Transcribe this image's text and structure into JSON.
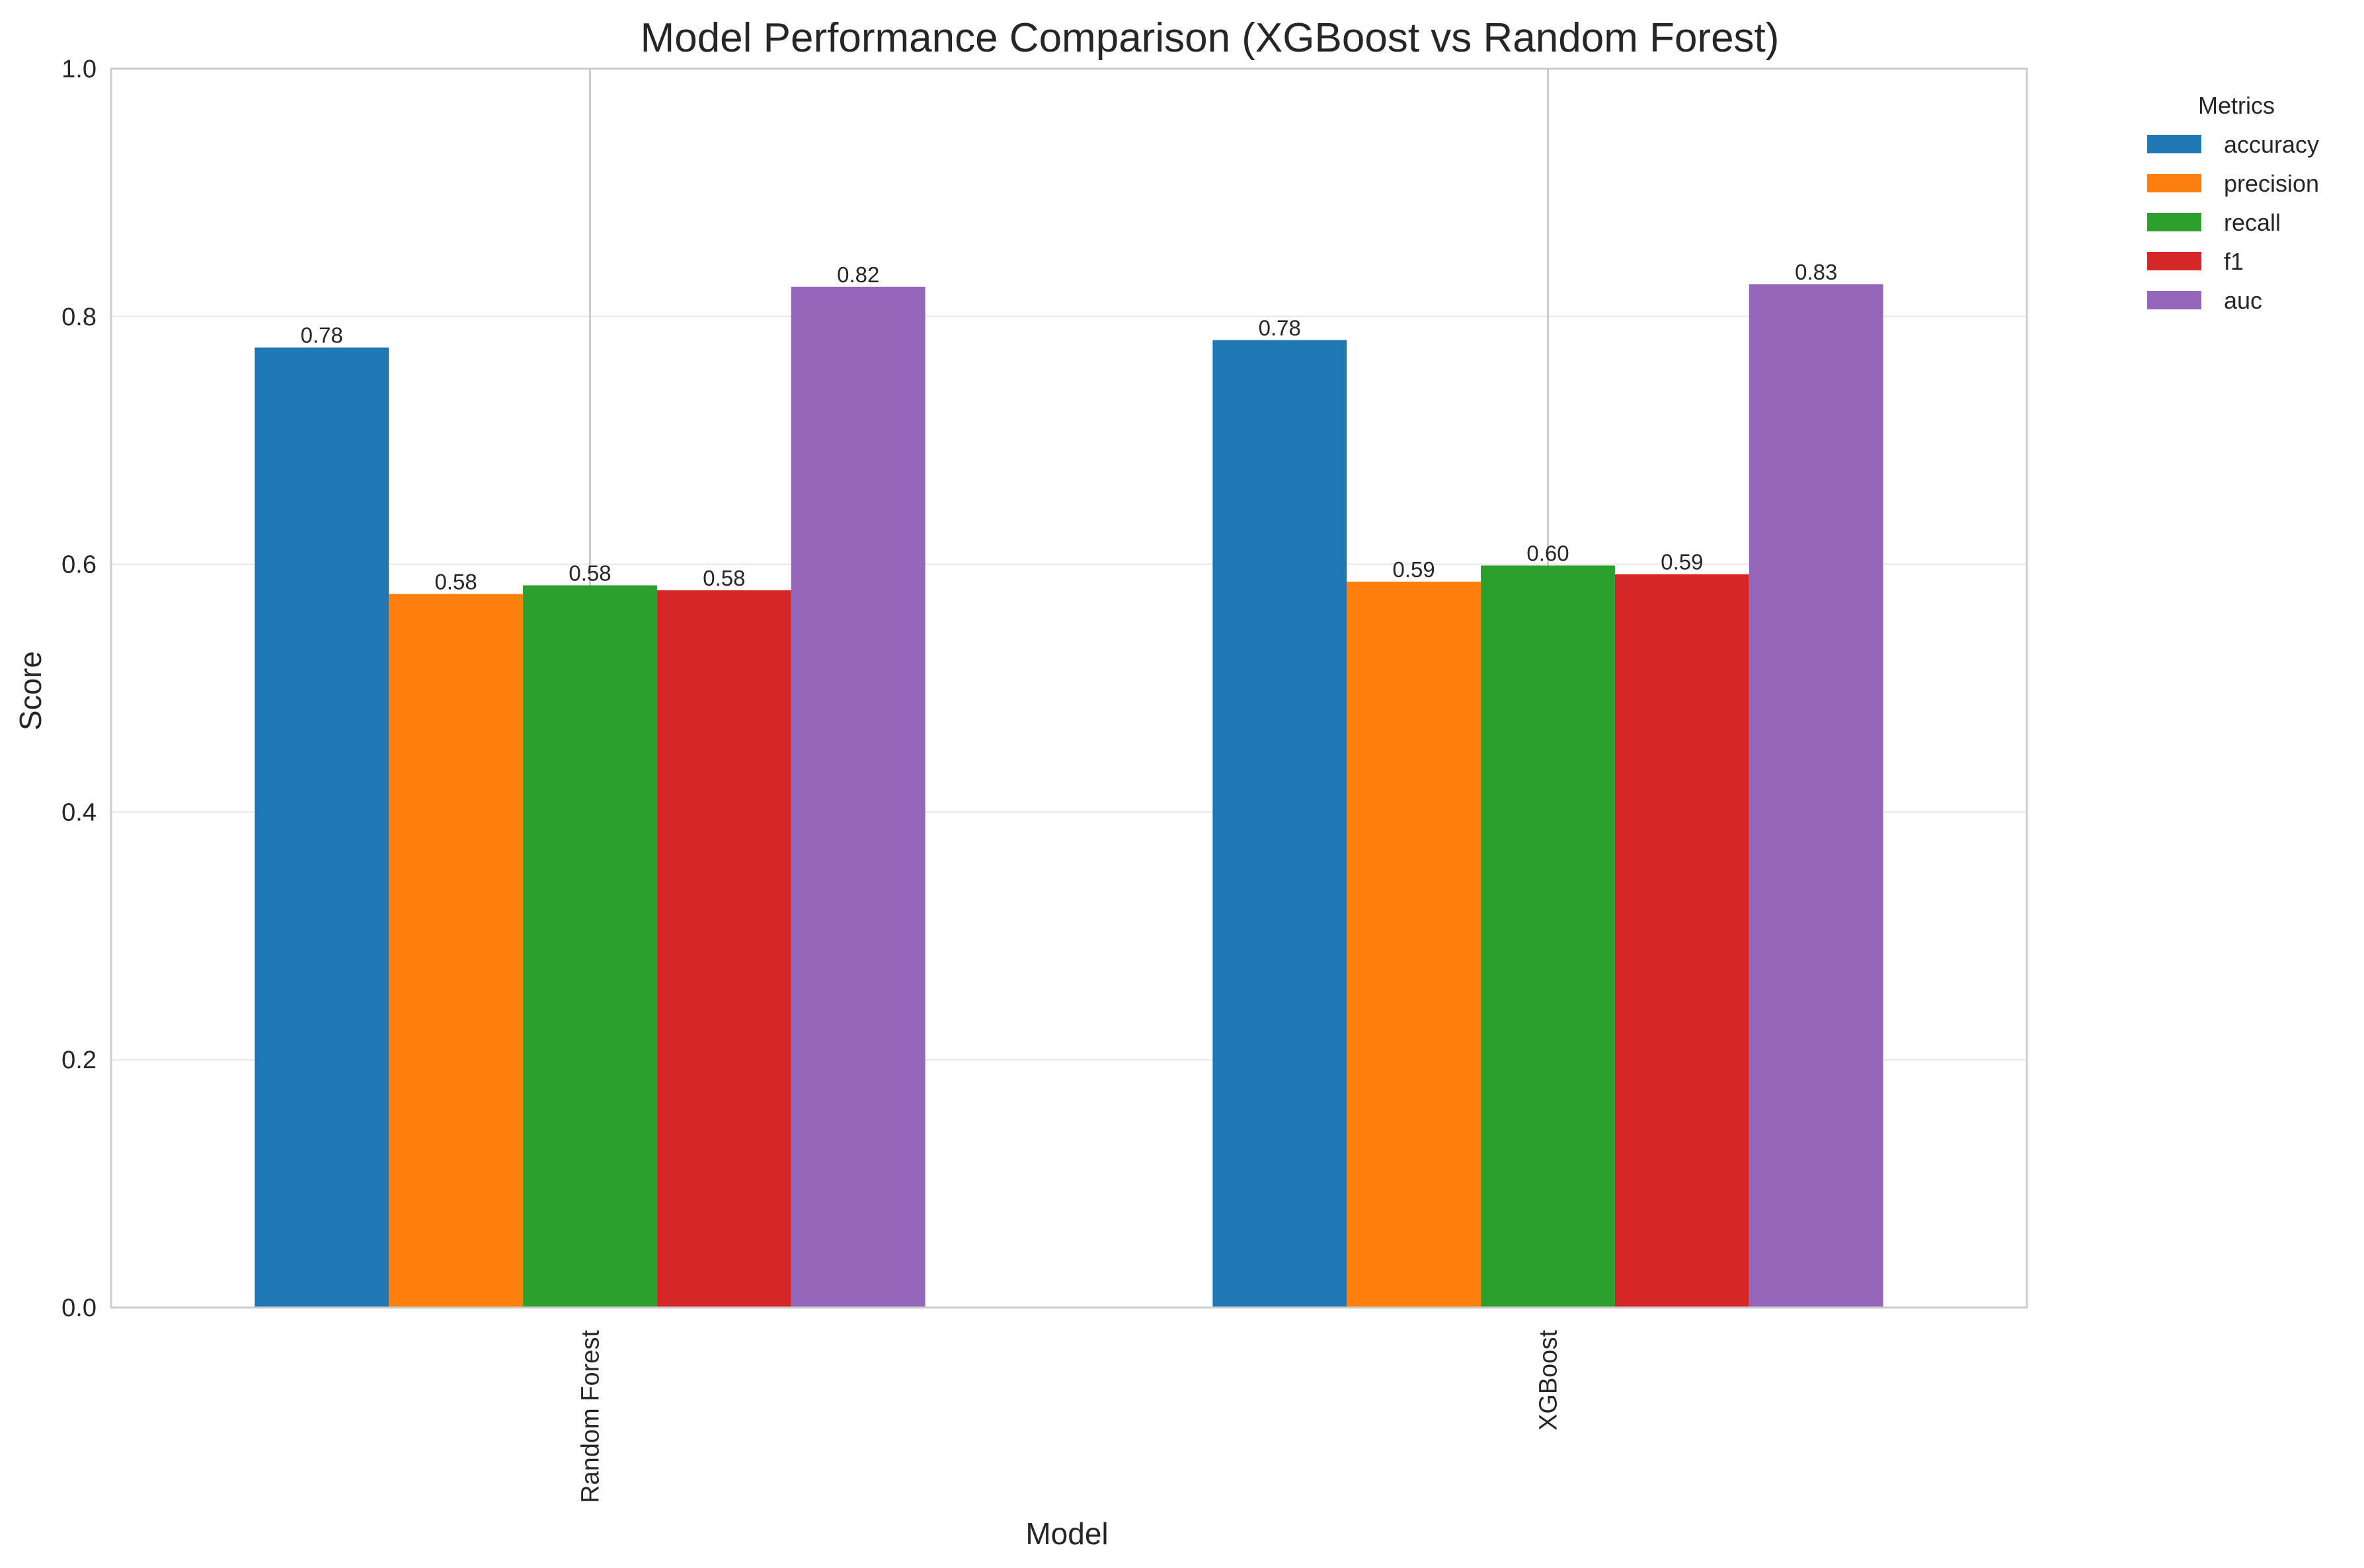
{
  "chart_data": {
    "type": "bar",
    "title": "Model Performance Comparison (XGBoost vs Random Forest)",
    "xlabel": "Model",
    "ylabel": "Score",
    "ylim": [
      0,
      1.0
    ],
    "yticks": [
      "0.0",
      "0.2",
      "0.4",
      "0.6",
      "0.8",
      "1.0"
    ],
    "categories": [
      "Random Forest",
      "XGBoost"
    ],
    "series": [
      {
        "name": "accuracy",
        "color": "#1f77b4",
        "values": [
          0.775,
          0.781
        ],
        "labels": [
          "0.78",
          "0.78"
        ]
      },
      {
        "name": "precision",
        "color": "#ff7f0e",
        "values": [
          0.576,
          0.586
        ],
        "labels": [
          "0.58",
          "0.59"
        ]
      },
      {
        "name": "recall",
        "color": "#2ca02c",
        "values": [
          0.583,
          0.599
        ],
        "labels": [
          "0.58",
          "0.60"
        ]
      },
      {
        "name": "f1",
        "color": "#d62728",
        "values": [
          0.579,
          0.592
        ],
        "labels": [
          "0.58",
          "0.59"
        ]
      },
      {
        "name": "auc",
        "color": "#9467bd",
        "values": [
          0.824,
          0.826
        ],
        "labels": [
          "0.82",
          "0.83"
        ]
      }
    ],
    "legend": {
      "title": "Metrics",
      "placement": "outside-top-right"
    },
    "grid": true,
    "colors": {
      "grid": "#e6e6e6",
      "spine": "#cccccc",
      "text": "#262626"
    }
  }
}
